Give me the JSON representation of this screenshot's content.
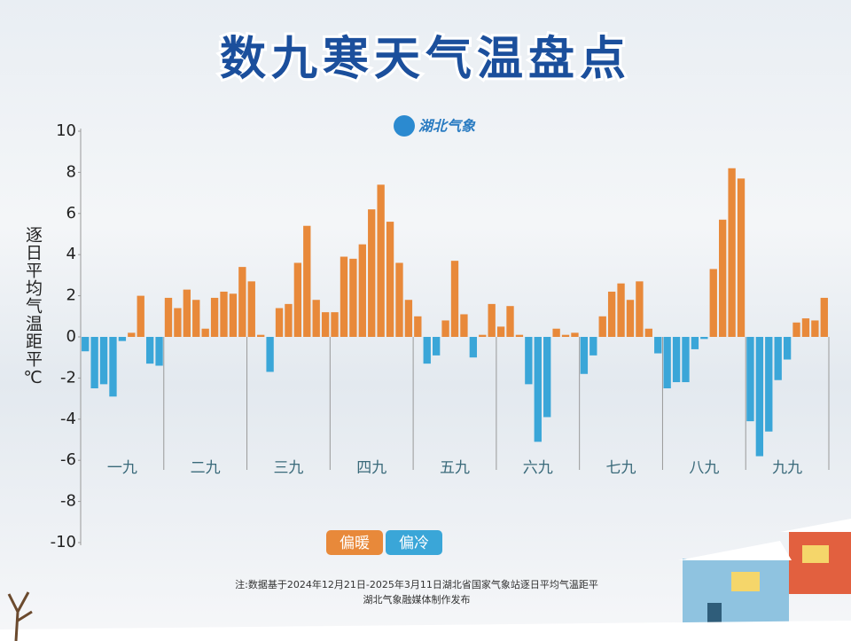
{
  "chart_data": {
    "type": "bar",
    "title": "数九寒天气温盘点",
    "logo": "湖北气象",
    "ylabel": "逐日平均气温距平℃",
    "groups": [
      "一九",
      "二九",
      "三九",
      "四九",
      "五九",
      "六九",
      "七九",
      "八九",
      "九九"
    ],
    "values": [
      -0.7,
      -2.5,
      -2.3,
      -2.9,
      -0.2,
      0.2,
      2.0,
      -1.3,
      -1.4,
      1.9,
      1.4,
      2.3,
      1.8,
      0.4,
      1.9,
      2.2,
      2.1,
      3.4,
      2.7,
      0.1,
      -1.7,
      1.4,
      1.6,
      3.6,
      5.4,
      1.8,
      1.2,
      1.2,
      3.9,
      3.8,
      4.5,
      6.2,
      7.4,
      5.6,
      3.6,
      1.8,
      1.0,
      -1.3,
      -0.9,
      0.8,
      3.7,
      1.1,
      -1.0,
      0.1,
      1.6,
      0.5,
      1.5,
      0.1,
      -2.3,
      -5.1,
      -3.9,
      0.4,
      0.1,
      0.2,
      -1.8,
      -0.9,
      1.0,
      2.2,
      2.6,
      1.8,
      2.7,
      0.4,
      -0.8,
      -2.5,
      -2.2,
      -2.2,
      -0.6,
      -0.1,
      3.3,
      5.7,
      8.2,
      7.7,
      -4.1,
      -5.8,
      -4.6,
      -2.1,
      -1.1,
      0.7,
      0.9,
      0.8,
      1.9
    ],
    "ylim": [
      -10,
      10
    ],
    "yticks": [
      -10,
      -8,
      -6,
      -4,
      -2,
      0,
      2,
      4,
      6,
      8,
      10
    ],
    "legend": [
      {
        "label": "偏暖",
        "color": "#e8893a"
      },
      {
        "label": "偏冷",
        "color": "#3aa6d8"
      }
    ],
    "notes": [
      "注:数据基于2024年12月21日-2025年3月11日湖北省国家气象站逐日平均气温距平",
      "湖北气象融媒体制作发布"
    ]
  }
}
